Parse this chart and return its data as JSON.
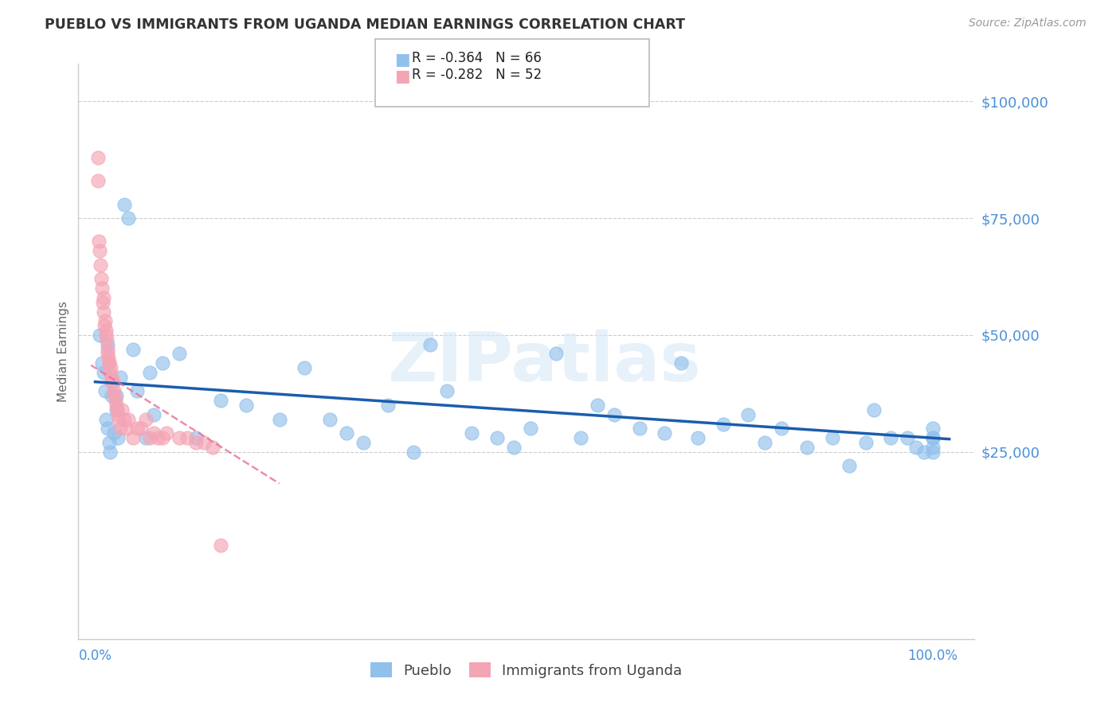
{
  "title": "PUEBLO VS IMMIGRANTS FROM UGANDA MEDIAN EARNINGS CORRELATION CHART",
  "source": "Source: ZipAtlas.com",
  "ylabel": "Median Earnings",
  "ytick_vals": [
    0,
    25000,
    50000,
    75000,
    100000
  ],
  "ytick_labels": [
    "",
    "$25,000",
    "$50,000",
    "$75,000",
    "$100,000"
  ],
  "ymax": 108000,
  "ymin": -15000,
  "xmin": -0.02,
  "xmax": 1.05,
  "blue_R": "-0.364",
  "blue_N": "66",
  "pink_R": "-0.282",
  "pink_N": "52",
  "blue_color": "#92C0EC",
  "pink_color": "#F4A5B5",
  "blue_line_color": "#1A5DAD",
  "pink_line_color": "#E87095",
  "axis_label_color": "#4A90D9",
  "grid_color": "#CCCCCC",
  "title_color": "#333333",
  "source_color": "#999999",
  "watermark_color": "#C8DCF5",
  "blue_scatter_x": [
    0.005,
    0.008,
    0.01,
    0.012,
    0.013,
    0.015,
    0.015,
    0.017,
    0.018,
    0.02,
    0.022,
    0.025,
    0.025,
    0.027,
    0.03,
    0.035,
    0.04,
    0.045,
    0.05,
    0.06,
    0.065,
    0.07,
    0.08,
    0.1,
    0.12,
    0.15,
    0.18,
    0.22,
    0.25,
    0.28,
    0.32,
    0.38,
    0.4,
    0.45,
    0.5,
    0.55,
    0.6,
    0.62,
    0.65,
    0.68,
    0.7,
    0.72,
    0.75,
    0.78,
    0.8,
    0.82,
    0.85,
    0.88,
    0.9,
    0.92,
    0.93,
    0.95,
    0.97,
    0.98,
    0.99,
    1.0,
    1.0,
    1.0,
    1.0,
    1.0,
    0.3,
    0.35,
    0.42,
    0.48,
    0.52,
    0.58
  ],
  "blue_scatter_y": [
    50000,
    44000,
    42000,
    38000,
    32000,
    48000,
    30000,
    27000,
    25000,
    37000,
    29000,
    37000,
    34000,
    28000,
    41000,
    78000,
    75000,
    47000,
    38000,
    28000,
    42000,
    33000,
    44000,
    46000,
    28000,
    36000,
    35000,
    32000,
    43000,
    32000,
    27000,
    25000,
    48000,
    29000,
    26000,
    46000,
    35000,
    33000,
    30000,
    29000,
    44000,
    28000,
    31000,
    33000,
    27000,
    30000,
    26000,
    28000,
    22000,
    27000,
    34000,
    28000,
    28000,
    26000,
    25000,
    26000,
    28000,
    25000,
    28000,
    30000,
    29000,
    35000,
    38000,
    28000,
    30000,
    28000
  ],
  "pink_scatter_x": [
    0.003,
    0.003,
    0.004,
    0.005,
    0.006,
    0.007,
    0.008,
    0.009,
    0.01,
    0.01,
    0.011,
    0.012,
    0.013,
    0.013,
    0.014,
    0.015,
    0.015,
    0.016,
    0.017,
    0.017,
    0.018,
    0.019,
    0.02,
    0.02,
    0.021,
    0.022,
    0.023,
    0.024,
    0.025,
    0.026,
    0.027,
    0.028,
    0.03,
    0.032,
    0.035,
    0.038,
    0.04,
    0.045,
    0.05,
    0.055,
    0.06,
    0.065,
    0.07,
    0.075,
    0.08,
    0.085,
    0.1,
    0.11,
    0.12,
    0.13,
    0.14,
    0.15
  ],
  "pink_scatter_y": [
    88000,
    83000,
    70000,
    68000,
    65000,
    62000,
    60000,
    57000,
    58000,
    55000,
    52000,
    53000,
    51000,
    50000,
    49000,
    47000,
    46000,
    45000,
    44000,
    44000,
    42000,
    43000,
    41000,
    40000,
    40000,
    38000,
    37000,
    36000,
    35000,
    34000,
    33000,
    32000,
    30000,
    34000,
    32000,
    30000,
    32000,
    28000,
    30000,
    30000,
    32000,
    28000,
    29000,
    28000,
    28000,
    29000,
    28000,
    28000,
    27000,
    27000,
    26000,
    5000
  ],
  "pink_trend_x_start": -0.005,
  "pink_trend_x_end": 0.22,
  "blue_trend_x_start": 0.0,
  "blue_trend_x_end": 1.02
}
